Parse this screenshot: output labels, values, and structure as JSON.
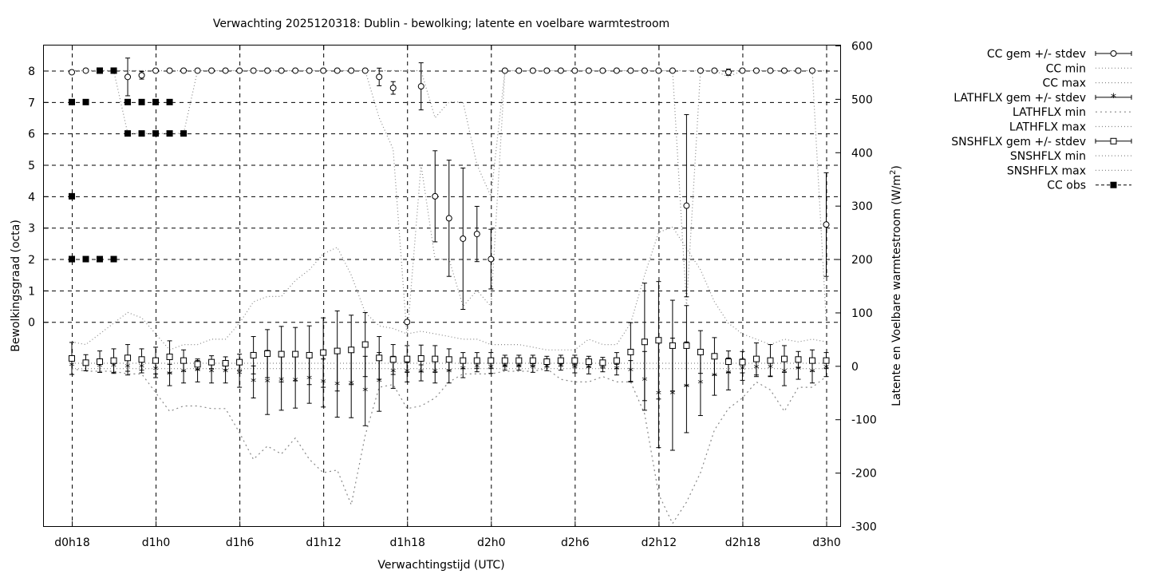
{
  "chart_data": {
    "type": "line",
    "title": "Verwachting 2025120318: Dublin - bewolking; latente en voelbare warmtestroom",
    "xlabel": "Verwachtingstijd (UTC)",
    "ylabel": "Bewolkingsgraad (octa)",
    "y2label_text": "Latente en Voelbare warmtestroom (W/m",
    "y2label_sup": "2",
    "y2label_end": ")",
    "x_unit": "hours after 2025-12-03 18 UTC",
    "xlim": [
      -2,
      55
    ],
    "ylim": [
      -6.5,
      8.8
    ],
    "y2lim": [
      -300,
      600
    ],
    "x_ticks": [
      0,
      6,
      12,
      18,
      24,
      30,
      36,
      42,
      48,
      54
    ],
    "x_tick_labels": [
      "d0h18",
      "d1h0",
      "d1h6",
      "d1h12",
      "d1h18",
      "d2h0",
      "d2h6",
      "d2h12",
      "d2h18",
      "d3h0"
    ],
    "y_ticks": [
      0,
      1,
      2,
      3,
      4,
      5,
      6,
      7,
      8
    ],
    "y2_ticks": [
      -300,
      -200,
      -100,
      0,
      100,
      200,
      300,
      400,
      500,
      600
    ],
    "grid": true,
    "legend_position": "outside-right",
    "legend": [
      "CC gem +/- stdev",
      "CC min",
      "CC max",
      "LATHFLX gem +/- stdev",
      "LATHFLX min",
      "LATHFLX max",
      "SNSHFLX gem +/- stdev",
      "SNSHFLX min",
      "SNSHFLX max",
      "CC obs"
    ],
    "series": [
      {
        "name": "CC gem +/- stdev",
        "axis": "left",
        "style": "errorbars-open-circle",
        "x": [
          0,
          1,
          2,
          3,
          4,
          5,
          6,
          7,
          8,
          9,
          10,
          11,
          12,
          13,
          14,
          15,
          16,
          17,
          18,
          19,
          20,
          21,
          22,
          23,
          24,
          25,
          26,
          27,
          28,
          29,
          30,
          31,
          32,
          33,
          34,
          35,
          36,
          37,
          38,
          39,
          40,
          41,
          42,
          43,
          44,
          45,
          46,
          47,
          48,
          49,
          50,
          51,
          52,
          53,
          54
        ],
        "y": [
          7.95,
          8,
          8,
          8,
          7.8,
          7.85,
          8,
          8,
          8,
          8,
          8,
          8,
          8,
          8,
          8,
          8,
          8,
          8,
          8,
          8,
          8,
          8,
          7.8,
          7.45,
          0,
          7.5,
          4,
          3.3,
          2.65,
          2.8,
          2,
          8,
          8,
          8,
          8,
          8,
          8,
          8,
          8,
          8,
          8,
          8,
          8,
          8,
          3.7,
          8,
          8,
          7.95,
          8,
          8,
          8,
          8,
          8,
          8,
          3.1
        ],
        "err": [
          0,
          0,
          0,
          0,
          0.6,
          0.12,
          0,
          0,
          0,
          0,
          0,
          0,
          0,
          0,
          0,
          0,
          0,
          0,
          0,
          0,
          0,
          0,
          0.28,
          0.2,
          0,
          0.75,
          1.45,
          1.85,
          2.25,
          0.88,
          0.95,
          0,
          0,
          0,
          0,
          0,
          0,
          0,
          0,
          0,
          0,
          0,
          0,
          0,
          2.9,
          0,
          0,
          0.1,
          0,
          0,
          0,
          0,
          0,
          0,
          1.65
        ]
      },
      {
        "name": "CC min",
        "axis": "left",
        "style": "dotted",
        "x": [
          0,
          1,
          2,
          3,
          4,
          5,
          6,
          7,
          8,
          9,
          10,
          11,
          12,
          13,
          14,
          15,
          16,
          17,
          18,
          19,
          20,
          21,
          22,
          23,
          24,
          25,
          26,
          27,
          28,
          29,
          30,
          31,
          32,
          33,
          34,
          35,
          36,
          37,
          38,
          39,
          40,
          41,
          42,
          43,
          44,
          45,
          46,
          47,
          48,
          49,
          50,
          51,
          52,
          53,
          54
        ],
        "y": [
          8,
          8,
          8,
          8,
          6,
          6,
          6,
          6,
          6,
          8,
          8,
          8,
          8,
          8,
          8,
          8,
          8,
          8,
          8,
          8,
          8,
          8,
          6.5,
          5.5,
          -0.5,
          5,
          2,
          2,
          0.5,
          1,
          0.5,
          8,
          8,
          8,
          8,
          8,
          8,
          8,
          8,
          8,
          8,
          8,
          8,
          8,
          0.5,
          8,
          8,
          7.8,
          8,
          8,
          8,
          8,
          8,
          8,
          0
        ]
      },
      {
        "name": "CC max",
        "axis": "left",
        "style": "dotted",
        "x": [
          0,
          1,
          2,
          3,
          4,
          5,
          6,
          7,
          8,
          9,
          10,
          11,
          12,
          13,
          14,
          15,
          16,
          17,
          18,
          19,
          20,
          21,
          22,
          23,
          24,
          25,
          26,
          27,
          28,
          29,
          30,
          31,
          32,
          33,
          34,
          35,
          36,
          37,
          38,
          39,
          40,
          41,
          42,
          43,
          44,
          45,
          46,
          47,
          48,
          49,
          50,
          51,
          52,
          53,
          54
        ],
        "y": [
          8,
          8,
          8,
          8,
          8,
          8,
          8,
          8,
          8,
          8,
          8,
          8,
          8,
          8,
          8,
          8,
          8,
          8,
          8,
          8,
          8,
          8,
          8,
          8,
          8,
          8,
          6.5,
          7,
          7,
          5,
          4,
          8,
          8,
          8,
          8,
          8,
          8,
          8,
          8,
          8,
          8,
          8,
          8,
          8,
          8,
          8,
          8,
          8,
          8,
          8,
          8,
          8,
          8,
          8,
          8
        ]
      },
      {
        "name": "LATHFLX gem +/- stdev",
        "axis": "right",
        "style": "errorbars-star",
        "x": [
          0,
          1,
          2,
          3,
          4,
          5,
          6,
          7,
          8,
          9,
          10,
          11,
          12,
          13,
          14,
          15,
          16,
          17,
          18,
          19,
          20,
          21,
          22,
          23,
          24,
          25,
          26,
          27,
          28,
          29,
          30,
          31,
          32,
          33,
          34,
          35,
          36,
          37,
          38,
          39,
          40,
          41,
          42,
          43,
          44,
          45,
          46,
          47,
          48,
          49,
          50,
          51,
          52,
          53,
          54
        ],
        "y": [
          0,
          -1,
          -2,
          -2,
          -3,
          -3,
          -8,
          -17,
          -12,
          -10,
          -12,
          -12,
          -15,
          -30,
          -31,
          -28,
          -29,
          -25,
          -32,
          -36,
          -35,
          -47,
          -30,
          -12,
          -12,
          -13,
          -12,
          -12,
          -7,
          -3,
          -4,
          -3,
          -3,
          -4,
          -3,
          -2,
          -5,
          -5,
          -3,
          -7,
          -10,
          -28,
          -53,
          -53,
          -40,
          -33,
          -20,
          -15,
          -7,
          -5,
          -4,
          -12,
          -7,
          -12,
          -5
        ],
        "err": [
          16,
          8,
          10,
          12,
          14,
          10,
          14,
          20,
          20,
          20,
          20,
          20,
          25,
          30,
          60,
          55,
          50,
          45,
          45,
          60,
          62,
          65,
          55,
          30,
          18,
          15,
          20,
          20,
          15,
          8,
          10,
          5,
          5,
          8,
          6,
          6,
          8,
          10,
          8,
          10,
          20,
          55,
          100,
          105,
          85,
          60,
          35,
          30,
          20,
          15,
          15,
          25,
          18,
          20,
          15
        ]
      },
      {
        "name": "LATHFLX min",
        "axis": "right",
        "style": "dotted",
        "x": [
          0,
          1,
          2,
          3,
          4,
          5,
          6,
          7,
          8,
          9,
          10,
          11,
          12,
          13,
          14,
          15,
          16,
          17,
          18,
          19,
          20,
          21,
          22,
          23,
          24,
          25,
          26,
          27,
          28,
          29,
          30,
          31,
          32,
          33,
          34,
          35,
          36,
          37,
          38,
          39,
          40,
          41,
          42,
          43,
          44,
          45,
          46,
          47,
          48,
          49,
          50,
          51,
          52,
          53,
          54
        ],
        "y": [
          -5,
          -10,
          -10,
          -10,
          -15,
          -15,
          -50,
          -85,
          -75,
          -75,
          -80,
          -80,
          -125,
          -175,
          -150,
          -165,
          -135,
          -175,
          -200,
          -195,
          -260,
          -130,
          -40,
          -35,
          -80,
          -75,
          -60,
          -30,
          -15,
          -15,
          -15,
          -10,
          -10,
          -10,
          -5,
          -25,
          -30,
          -30,
          -20,
          -30,
          -30,
          -90,
          -240,
          -295,
          -255,
          -200,
          -120,
          -80,
          -60,
          -30,
          -45,
          -85,
          -40,
          -40,
          -20
        ]
      },
      {
        "name": "LATHFLX max",
        "axis": "right",
        "style": "dotted",
        "x": [
          0,
          1,
          2,
          3,
          4,
          5,
          6,
          7,
          8,
          9,
          10,
          11,
          12,
          13,
          14,
          15,
          16,
          17,
          18,
          19,
          20,
          21,
          22,
          23,
          24,
          25,
          26,
          27,
          28,
          29,
          30,
          31,
          32,
          33,
          34,
          35,
          36,
          37,
          38,
          39,
          40,
          41,
          42,
          43,
          44,
          45,
          46,
          47,
          48,
          49,
          50,
          51,
          52,
          53,
          54
        ],
        "y": [
          5,
          5,
          5,
          5,
          5,
          5,
          5,
          5,
          5,
          5,
          5,
          5,
          5,
          5,
          5,
          5,
          5,
          5,
          5,
          5,
          5,
          5,
          5,
          5,
          5,
          5,
          5,
          5,
          5,
          5,
          5,
          5,
          5,
          5,
          5,
          5,
          5,
          5,
          5,
          5,
          5,
          5,
          5,
          5,
          5,
          5,
          5,
          5,
          5,
          5,
          5,
          5,
          5,
          5,
          5
        ]
      },
      {
        "name": "SNSHFLX gem +/- stdev",
        "axis": "right",
        "style": "errorbars-open-square",
        "x": [
          0,
          1,
          2,
          3,
          4,
          5,
          6,
          7,
          8,
          9,
          10,
          11,
          12,
          13,
          14,
          15,
          16,
          17,
          18,
          19,
          20,
          21,
          22,
          23,
          24,
          25,
          26,
          27,
          28,
          29,
          30,
          31,
          32,
          33,
          34,
          35,
          36,
          37,
          38,
          39,
          40,
          41,
          42,
          43,
          44,
          45,
          46,
          47,
          48,
          49,
          50,
          51,
          52,
          53,
          54
        ],
        "y": [
          14,
          6,
          8,
          10,
          15,
          12,
          10,
          17,
          10,
          3,
          7,
          5,
          7,
          20,
          23,
          22,
          22,
          20,
          25,
          28,
          30,
          40,
          15,
          12,
          13,
          14,
          13,
          12,
          10,
          10,
          10,
          10,
          10,
          10,
          8,
          10,
          10,
          8,
          6,
          10,
          26,
          45,
          48,
          38,
          38,
          26,
          18,
          8,
          7,
          13,
          10,
          13,
          12,
          10,
          10
        ],
        "err": [
          30,
          15,
          20,
          22,
          25,
          20,
          25,
          30,
          20,
          10,
          12,
          12,
          15,
          35,
          45,
          52,
          50,
          55,
          65,
          75,
          65,
          60,
          40,
          28,
          25,
          25,
          25,
          20,
          15,
          15,
          15,
          10,
          10,
          10,
          10,
          10,
          10,
          10,
          10,
          15,
          55,
          110,
          110,
          85,
          75,
          40,
          35,
          20,
          20,
          30,
          30,
          25,
          15,
          20,
          15
        ]
      },
      {
        "name": "SNSHFLX min",
        "axis": "right",
        "style": "dotted",
        "x": [
          0,
          1,
          2,
          3,
          4,
          5,
          6,
          7,
          8,
          9,
          10,
          11,
          12,
          13,
          14,
          15,
          16,
          17,
          18,
          19,
          20,
          21,
          22,
          23,
          24,
          25,
          26,
          27,
          28,
          29,
          30,
          31,
          32,
          33,
          34,
          35,
          36,
          37,
          38,
          39,
          40,
          41,
          42,
          43,
          44,
          45,
          46,
          47,
          48,
          49,
          50,
          51,
          52,
          53,
          54
        ],
        "y": [
          -5,
          -5,
          -5,
          -5,
          -5,
          -5,
          -5,
          -5,
          -5,
          -5,
          -5,
          -5,
          -5,
          -5,
          -5,
          -5,
          -5,
          -5,
          -5,
          -5,
          -5,
          -5,
          -5,
          -5,
          -5,
          -5,
          -5,
          -5,
          -5,
          -5,
          -5,
          -5,
          -5,
          -5,
          -5,
          -5,
          -5,
          -5,
          -5,
          -5,
          -5,
          -5,
          -5,
          -5,
          -5,
          -5,
          -5,
          -5,
          -5,
          -5,
          -5,
          -5,
          -5,
          -5,
          -5
        ]
      },
      {
        "name": "SNSHFLX max",
        "axis": "right",
        "style": "dotted",
        "x": [
          0,
          1,
          2,
          3,
          4,
          5,
          6,
          7,
          8,
          9,
          10,
          11,
          12,
          13,
          14,
          15,
          16,
          17,
          18,
          19,
          20,
          21,
          22,
          23,
          24,
          25,
          26,
          27,
          28,
          29,
          30,
          31,
          32,
          33,
          34,
          35,
          36,
          37,
          38,
          39,
          40,
          41,
          42,
          43,
          44,
          45,
          46,
          47,
          48,
          49,
          50,
          51,
          52,
          53,
          54
        ],
        "y": [
          45,
          40,
          60,
          80,
          100,
          90,
          60,
          30,
          40,
          40,
          50,
          50,
          80,
          120,
          130,
          130,
          160,
          180,
          210,
          222,
          170,
          100,
          75,
          70,
          60,
          65,
          60,
          55,
          50,
          50,
          40,
          40,
          40,
          35,
          30,
          30,
          30,
          50,
          40,
          40,
          80,
          170,
          250,
          260,
          220,
          180,
          120,
          80,
          60,
          50,
          40,
          50,
          45,
          50,
          45
        ]
      },
      {
        "name": "CC obs",
        "axis": "left",
        "style": "filled-square",
        "x": [
          0,
          0,
          0,
          1,
          1,
          2,
          2,
          3,
          3,
          4,
          4,
          5,
          5,
          6,
          6,
          7,
          7,
          8,
          0
        ],
        "y": [
          4,
          7,
          2,
          7,
          2,
          2,
          8,
          8,
          2,
          7,
          6,
          7,
          6,
          7,
          6,
          7,
          6,
          6,
          2
        ]
      }
    ]
  }
}
